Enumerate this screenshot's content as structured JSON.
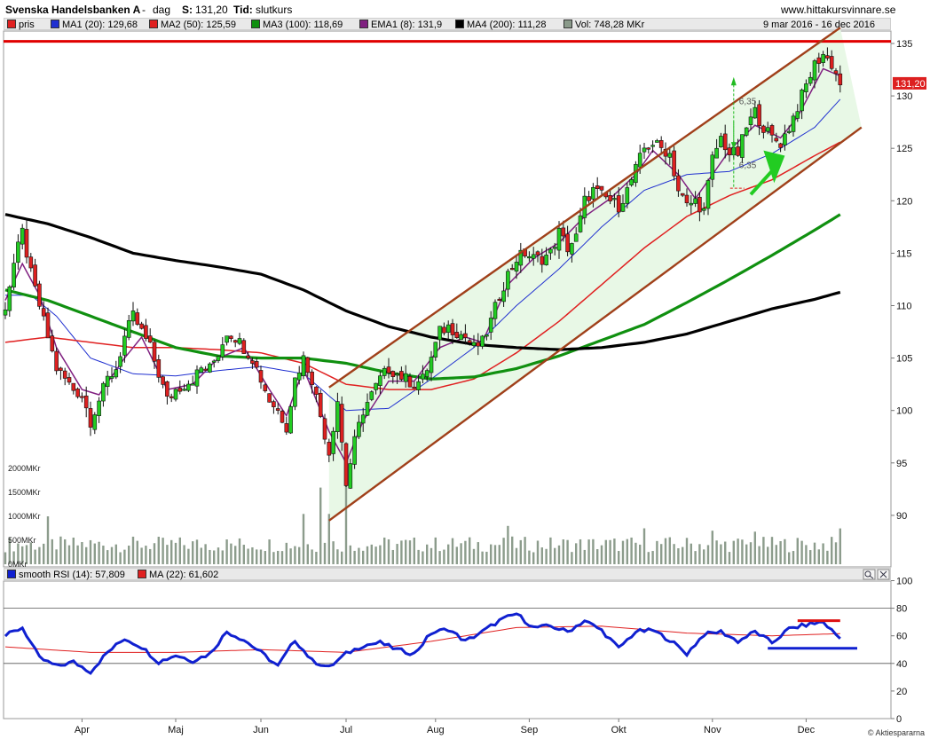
{
  "header": {
    "name": "Svenska Handelsbanken A",
    "sep": "-",
    "period": "dag",
    "price_label": "S:",
    "price_value": "131,20",
    "tid_label": "Tid:",
    "tid_value": "slutkurs",
    "site": "www.hittakursvinnare.se"
  },
  "legend": {
    "items": [
      {
        "label": "pris",
        "color": "#e02020"
      },
      {
        "label": "MA1 (20): 129,68",
        "color": "#2030d0"
      },
      {
        "label": "MA2 (50): 125,59",
        "color": "#e02020"
      },
      {
        "label": "MA3 (100): 118,69",
        "color": "#109010"
      },
      {
        "label": "EMA1 (8): 131,9",
        "color": "#802080"
      },
      {
        "label": "MA4 (200): 111,28",
        "color": "#000000"
      },
      {
        "label": "Vol: 748,28 MKr",
        "color": "#8a9a8a"
      }
    ],
    "date_range": "9 mar 2016 - 16 dec 2016"
  },
  "rsi_legend": {
    "items": [
      {
        "label": "smooth RSI (14): 57,809",
        "color": "#1020d0"
      },
      {
        "label": "MA (22): 61,602",
        "color": "#e02020"
      }
    ]
  },
  "price_axis": [
    "135",
    "130",
    "125",
    "120",
    "115",
    "110",
    "105",
    "100",
    "95",
    "90"
  ],
  "current_price_tag": "131,20",
  "volume_labels": [
    "2000MKr",
    "1500MKr",
    "1000MKr",
    "500MKr",
    "0MKr"
  ],
  "rsi_axis": [
    "100",
    "80",
    "60",
    "40",
    "20",
    "0"
  ],
  "months": [
    "Apr",
    "Maj",
    "Jun",
    "Jul",
    "Aug",
    "Sep",
    "Okt",
    "Nov",
    "Dec"
  ],
  "annotations": {
    "measure_top": "6,35",
    "measure_bottom": "6,35"
  },
  "watermark": "© Aktiespararna",
  "colors": {
    "channel_line": "#a0401a",
    "channel_fill": "#e8f8e6",
    "resistance": "#e00000",
    "candle_up": "#22cc22",
    "candle_down": "#dd2020",
    "arrow": "#22cc22"
  },
  "chart_data": {
    "type": "candlestick",
    "title": "Svenska Handelsbanken A - dag",
    "ylim": [
      86,
      136
    ],
    "yticks": [
      90,
      95,
      100,
      105,
      110,
      115,
      120,
      125,
      130,
      135
    ],
    "date_range": [
      "2016-03-09",
      "2016-12-16"
    ],
    "close_anchors": [
      [
        0,
        110
      ],
      [
        2,
        114
      ],
      [
        4,
        117
      ],
      [
        6,
        113
      ],
      [
        8,
        110
      ],
      [
        10,
        107
      ],
      [
        12,
        104
      ],
      [
        14,
        103
      ],
      [
        16,
        102
      ],
      [
        18,
        101.5
      ],
      [
        20,
        99
      ],
      [
        22,
        101
      ],
      [
        24,
        103
      ],
      [
        26,
        104
      ],
      [
        28,
        107
      ],
      [
        30,
        109
      ],
      [
        32,
        107.5
      ],
      [
        34,
        106
      ],
      [
        36,
        103.5
      ],
      [
        38,
        101
      ],
      [
        40,
        102
      ],
      [
        42,
        102.5
      ],
      [
        44,
        103
      ],
      [
        46,
        104
      ],
      [
        48,
        104
      ],
      [
        50,
        105.5
      ],
      [
        52,
        107.5
      ],
      [
        54,
        107
      ],
      [
        56,
        106
      ],
      [
        58,
        105
      ],
      [
        60,
        103
      ],
      [
        62,
        101
      ],
      [
        64,
        100
      ],
      [
        66,
        98.5
      ],
      [
        68,
        103
      ],
      [
        70,
        105
      ],
      [
        72,
        103
      ],
      [
        74,
        99.5
      ],
      [
        76,
        96
      ],
      [
        78,
        101
      ],
      [
        80,
        93
      ],
      [
        82,
        97
      ],
      [
        84,
        100
      ],
      [
        86,
        101.5
      ],
      [
        88,
        103
      ],
      [
        90,
        104
      ],
      [
        92,
        103.5
      ],
      [
        94,
        103
      ],
      [
        96,
        102.5
      ],
      [
        98,
        103
      ],
      [
        100,
        105
      ],
      [
        102,
        107.5
      ],
      [
        104,
        108
      ],
      [
        106,
        107.5
      ],
      [
        108,
        107
      ],
      [
        110,
        106
      ],
      [
        112,
        106.5
      ],
      [
        114,
        108.5
      ],
      [
        116,
        111
      ],
      [
        118,
        113
      ],
      [
        120,
        114.5
      ],
      [
        122,
        115
      ],
      [
        124,
        114.5
      ],
      [
        126,
        114.5
      ],
      [
        128,
        115
      ],
      [
        130,
        117
      ],
      [
        132,
        115.5
      ],
      [
        134,
        116.5
      ],
      [
        136,
        120
      ],
      [
        138,
        121
      ],
      [
        140,
        120.5
      ],
      [
        142,
        120
      ],
      [
        144,
        119.5
      ],
      [
        146,
        121
      ],
      [
        148,
        123
      ],
      [
        150,
        125
      ],
      [
        152,
        125.5
      ],
      [
        154,
        125
      ],
      [
        156,
        124.5
      ],
      [
        158,
        121
      ],
      [
        160,
        119.5
      ],
      [
        162,
        120
      ],
      [
        164,
        119
      ],
      [
        166,
        124
      ],
      [
        168,
        126
      ],
      [
        170,
        124.5
      ],
      [
        172,
        124.5
      ],
      [
        174,
        127
      ],
      [
        176,
        128.5
      ],
      [
        178,
        127
      ],
      [
        180,
        126
      ],
      [
        182,
        125.5
      ],
      [
        184,
        127
      ],
      [
        186,
        129
      ],
      [
        188,
        131
      ],
      [
        190,
        133
      ],
      [
        192,
        134
      ],
      [
        194,
        133
      ],
      [
        196,
        131.2
      ]
    ],
    "moving_averages": [
      {
        "name": "MA1 (20)",
        "last": 129.68,
        "color": "#2030d0",
        "points": [
          [
            0,
            111
          ],
          [
            6,
            111
          ],
          [
            12,
            109
          ],
          [
            20,
            105
          ],
          [
            30,
            103.5
          ],
          [
            40,
            103.3
          ],
          [
            50,
            103.8
          ],
          [
            60,
            104.2
          ],
          [
            70,
            103.5
          ],
          [
            80,
            100
          ],
          [
            90,
            100.2
          ],
          [
            100,
            103
          ],
          [
            110,
            106
          ],
          [
            120,
            110
          ],
          [
            130,
            113.5
          ],
          [
            140,
            117.5
          ],
          [
            150,
            121
          ],
          [
            160,
            122.5
          ],
          [
            170,
            122.8
          ],
          [
            180,
            124.5
          ],
          [
            190,
            127
          ],
          [
            196,
            129.68
          ]
        ]
      },
      {
        "name": "MA2 (50)",
        "last": 125.59,
        "color": "#e02020",
        "points": [
          [
            0,
            106.5
          ],
          [
            10,
            107
          ],
          [
            20,
            106.5
          ],
          [
            30,
            106
          ],
          [
            40,
            106
          ],
          [
            50,
            105.8
          ],
          [
            60,
            105.5
          ],
          [
            70,
            104.5
          ],
          [
            80,
            102.5
          ],
          [
            90,
            102
          ],
          [
            100,
            102
          ],
          [
            110,
            103
          ],
          [
            120,
            105.5
          ],
          [
            130,
            108.5
          ],
          [
            140,
            112
          ],
          [
            150,
            115.5
          ],
          [
            160,
            118.5
          ],
          [
            170,
            120.5
          ],
          [
            180,
            122
          ],
          [
            190,
            124.3
          ],
          [
            196,
            125.59
          ]
        ]
      },
      {
        "name": "MA3 (100)",
        "last": 118.69,
        "color": "#109010",
        "points": [
          [
            0,
            111.5
          ],
          [
            10,
            110.5
          ],
          [
            20,
            109
          ],
          [
            30,
            107.5
          ],
          [
            40,
            106
          ],
          [
            50,
            105.2
          ],
          [
            60,
            105
          ],
          [
            70,
            105
          ],
          [
            80,
            104.5
          ],
          [
            90,
            103.6
          ],
          [
            100,
            103
          ],
          [
            110,
            103.2
          ],
          [
            120,
            104
          ],
          [
            130,
            105.2
          ],
          [
            140,
            106.7
          ],
          [
            150,
            108.2
          ],
          [
            160,
            110.3
          ],
          [
            170,
            112.5
          ],
          [
            180,
            114.8
          ],
          [
            190,
            117.2
          ],
          [
            196,
            118.69
          ]
        ]
      },
      {
        "name": "EMA1 (8)",
        "last": 131.9,
        "color": "#802080",
        "points": [
          [
            0,
            110.5
          ],
          [
            4,
            114
          ],
          [
            8,
            111
          ],
          [
            12,
            106
          ],
          [
            18,
            102
          ],
          [
            22,
            101.5
          ],
          [
            28,
            105
          ],
          [
            32,
            107
          ],
          [
            38,
            102
          ],
          [
            44,
            102.5
          ],
          [
            50,
            105
          ],
          [
            56,
            106
          ],
          [
            62,
            102
          ],
          [
            66,
            99.5
          ],
          [
            70,
            104
          ],
          [
            76,
            98
          ],
          [
            80,
            95
          ],
          [
            84,
            99
          ],
          [
            90,
            102.8
          ],
          [
            96,
            102.8
          ],
          [
            102,
            106
          ],
          [
            108,
            107
          ],
          [
            112,
            106.5
          ],
          [
            118,
            112
          ],
          [
            124,
            114.5
          ],
          [
            130,
            116
          ],
          [
            136,
            118.5
          ],
          [
            142,
            120.2
          ],
          [
            148,
            122.5
          ],
          [
            152,
            124.8
          ],
          [
            158,
            122.5
          ],
          [
            162,
            120.2
          ],
          [
            166,
            122.5
          ],
          [
            170,
            124.8
          ],
          [
            176,
            127.2
          ],
          [
            182,
            126
          ],
          [
            186,
            128
          ],
          [
            192,
            132.6
          ],
          [
            196,
            131.9
          ]
        ]
      },
      {
        "name": "MA4 (200)",
        "last": 111.28,
        "color": "#000000",
        "points": [
          [
            0,
            118.7
          ],
          [
            10,
            117.8
          ],
          [
            20,
            116.5
          ],
          [
            30,
            115
          ],
          [
            40,
            114.3
          ],
          [
            50,
            113.7
          ],
          [
            60,
            113
          ],
          [
            70,
            111.5
          ],
          [
            80,
            109.5
          ],
          [
            90,
            108
          ],
          [
            100,
            107
          ],
          [
            110,
            106.3
          ],
          [
            120,
            106
          ],
          [
            130,
            105.8
          ],
          [
            140,
            106
          ],
          [
            150,
            106.5
          ],
          [
            160,
            107.3
          ],
          [
            170,
            108.5
          ],
          [
            180,
            109.7
          ],
          [
            190,
            110.6
          ],
          [
            196,
            111.28
          ]
        ]
      }
    ],
    "volume": {
      "unit": "MKr",
      "ylim": [
        0,
        2500
      ],
      "ticks": [
        0,
        500,
        1000,
        1500,
        2000
      ],
      "spikes": [
        [
          10,
          1000
        ],
        [
          70,
          1050
        ],
        [
          74,
          1600
        ],
        [
          76,
          1050
        ],
        [
          80,
          1800
        ],
        [
          118,
          800
        ],
        [
          150,
          750
        ],
        [
          166,
          700
        ],
        [
          176,
          680
        ],
        [
          196,
          748
        ]
      ]
    },
    "rsi": {
      "name": "smooth RSI (14)",
      "last": 57.809,
      "ma_name": "MA (22)",
      "ma_last": 61.602,
      "ylim": [
        0,
        100
      ],
      "levels": [
        40,
        80
      ],
      "points": [
        [
          0,
          60
        ],
        [
          4,
          66
        ],
        [
          8,
          44
        ],
        [
          12,
          38
        ],
        [
          16,
          41
        ],
        [
          20,
          34
        ],
        [
          24,
          48
        ],
        [
          28,
          58
        ],
        [
          32,
          52
        ],
        [
          36,
          41
        ],
        [
          40,
          46
        ],
        [
          44,
          42
        ],
        [
          48,
          47
        ],
        [
          52,
          63
        ],
        [
          56,
          57
        ],
        [
          60,
          48
        ],
        [
          64,
          38
        ],
        [
          68,
          57
        ],
        [
          72,
          42
        ],
        [
          76,
          37
        ],
        [
          80,
          47
        ],
        [
          84,
          53
        ],
        [
          88,
          55
        ],
        [
          92,
          50
        ],
        [
          96,
          47
        ],
        [
          100,
          62
        ],
        [
          104,
          65
        ],
        [
          108,
          56
        ],
        [
          112,
          63
        ],
        [
          116,
          71
        ],
        [
          120,
          76
        ],
        [
          124,
          66
        ],
        [
          128,
          67
        ],
        [
          132,
          63
        ],
        [
          136,
          71
        ],
        [
          140,
          64
        ],
        [
          144,
          51
        ],
        [
          148,
          63
        ],
        [
          152,
          64
        ],
        [
          156,
          57
        ],
        [
          160,
          47
        ],
        [
          164,
          61
        ],
        [
          168,
          63
        ],
        [
          172,
          56
        ],
        [
          176,
          63
        ],
        [
          180,
          55
        ],
        [
          184,
          65
        ],
        [
          188,
          68
        ],
        [
          192,
          70
        ],
        [
          196,
          58
        ]
      ],
      "ma_points": [
        [
          0,
          52
        ],
        [
          20,
          48
        ],
        [
          40,
          48
        ],
        [
          60,
          50
        ],
        [
          80,
          48
        ],
        [
          100,
          56
        ],
        [
          120,
          66
        ],
        [
          140,
          67
        ],
        [
          160,
          62
        ],
        [
          180,
          60
        ],
        [
          196,
          61.6
        ]
      ]
    },
    "channel": {
      "upper": [
        [
          76,
          102.2
        ],
        [
          196,
          136.5
        ]
      ],
      "lower": [
        [
          76,
          89.5
        ],
        [
          201,
          127
        ]
      ]
    },
    "resistance": 135.2,
    "rsi_lines": {
      "red": 71,
      "blue": 51
    },
    "months": [
      "Apr",
      "Maj",
      "Jun",
      "Jul",
      "Aug",
      "Sep",
      "Okt",
      "Nov",
      "Dec"
    ]
  }
}
